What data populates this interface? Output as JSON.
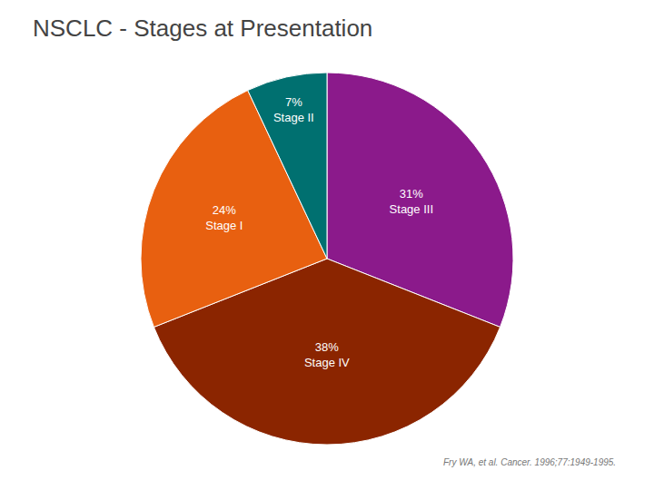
{
  "chart_data": {
    "type": "pie",
    "title": "NSCLC - Stages at Presentation",
    "categories": [
      "Stage III",
      "Stage IV",
      "Stage I",
      "Stage II"
    ],
    "values": [
      31,
      38,
      24,
      7
    ],
    "value_labels": [
      "31%\nStage III",
      "38%\nStage IV",
      "24%\nStage I",
      "7%\nStage II"
    ],
    "colors": [
      "#8B1A8B",
      "#8B2500",
      "#E86010",
      "#007070"
    ],
    "data_labels": true,
    "annotations": [
      "Fry WA, et al. Cancer. 1996;77:1949-1995."
    ]
  }
}
